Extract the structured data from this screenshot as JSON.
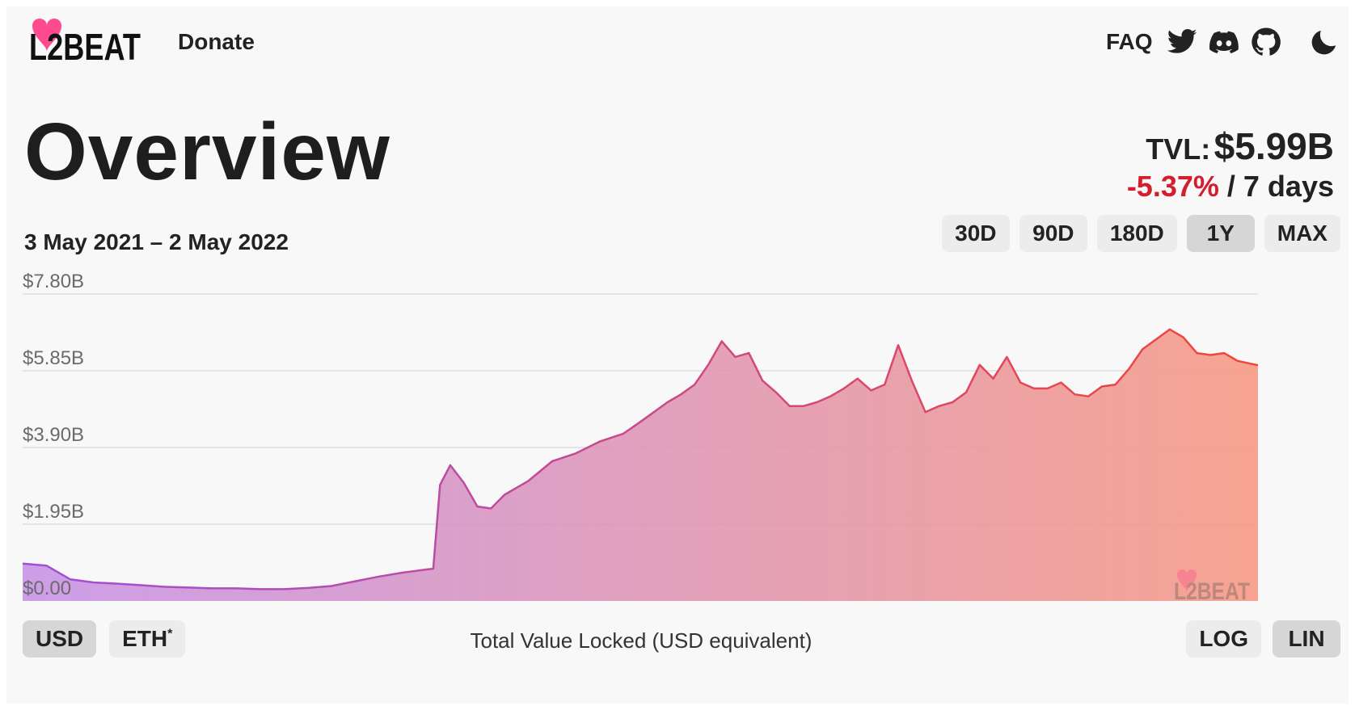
{
  "header": {
    "logo_text": "L2BEAT",
    "donate_label": "Donate",
    "faq_label": "FAQ",
    "icons": [
      "twitter-icon",
      "discord-icon",
      "github-icon",
      "moon-icon"
    ]
  },
  "main": {
    "title": "Overview",
    "tvl_label": "TVL:",
    "tvl_value": "$5.99B",
    "change_value": "-5.37%",
    "change_period": "/ 7 days",
    "date_range": "3 May 2021 – 2 May 2022",
    "range_buttons": [
      "30D",
      "90D",
      "180D",
      "1Y",
      "MAX"
    ],
    "active_range": "1Y"
  },
  "footer": {
    "currency_buttons": [
      "USD",
      "ETH"
    ],
    "eth_marker": "*",
    "active_currency": "USD",
    "caption": "Total Value Locked (USD equivalent)",
    "scale_buttons": [
      "LOG",
      "LIN"
    ],
    "active_scale": "LIN"
  },
  "colors": {
    "accent_red": "#d31f2c",
    "gradient_start": "#a467e0",
    "gradient_end": "#f2564a",
    "logo_pink": "#ff4a8d"
  },
  "chart_data": {
    "type": "area",
    "title": "",
    "xlabel": "",
    "ylabel": "",
    "x_range": [
      "2021-05-03",
      "2022-05-02"
    ],
    "ylim": [
      0,
      7.8
    ],
    "y_unit": "billion USD",
    "y_ticks": [
      {
        "value": 7.8,
        "label": "$7.80B"
      },
      {
        "value": 5.85,
        "label": "$5.85B"
      },
      {
        "value": 3.9,
        "label": "$3.90B"
      },
      {
        "value": 1.95,
        "label": "$1.95B"
      },
      {
        "value": 0,
        "label": "$0.00"
      }
    ],
    "grid": true,
    "series": [
      {
        "x": [
          "2021-05-03",
          "2021-05-10",
          "2021-05-17",
          "2021-05-24",
          "2021-05-31",
          "2021-06-07",
          "2021-06-14",
          "2021-06-21",
          "2021-06-28",
          "2021-07-05",
          "2021-07-12",
          "2021-07-19",
          "2021-07-26",
          "2021-08-02",
          "2021-08-09",
          "2021-08-16",
          "2021-08-23",
          "2021-08-30",
          "2021-09-01",
          "2021-09-03",
          "2021-09-06",
          "2021-09-10",
          "2021-09-14",
          "2021-09-18",
          "2021-09-22",
          "2021-09-29",
          "2021-10-06",
          "2021-10-13",
          "2021-10-20",
          "2021-10-27",
          "2021-11-01",
          "2021-11-05",
          "2021-11-09",
          "2021-11-13",
          "2021-11-17",
          "2021-11-21",
          "2021-11-25",
          "2021-11-29",
          "2021-12-03",
          "2021-12-07",
          "2021-12-11",
          "2021-12-15",
          "2021-12-19",
          "2021-12-23",
          "2021-12-27",
          "2021-12-31",
          "2022-01-04",
          "2022-01-08",
          "2022-01-12",
          "2022-01-16",
          "2022-01-20",
          "2022-01-24",
          "2022-01-28",
          "2022-02-01",
          "2022-02-05",
          "2022-02-09",
          "2022-02-13",
          "2022-02-17",
          "2022-02-21",
          "2022-02-25",
          "2022-03-01",
          "2022-03-05",
          "2022-03-09",
          "2022-03-13",
          "2022-03-17",
          "2022-03-21",
          "2022-03-25",
          "2022-03-29",
          "2022-04-02",
          "2022-04-06",
          "2022-04-10",
          "2022-04-14",
          "2022-04-18",
          "2022-04-22",
          "2022-04-26",
          "2022-05-02"
        ],
        "values": [
          0.95,
          0.9,
          0.55,
          0.47,
          0.44,
          0.4,
          0.36,
          0.34,
          0.32,
          0.32,
          0.3,
          0.3,
          0.33,
          0.38,
          0.5,
          0.62,
          0.72,
          0.8,
          0.82,
          2.95,
          3.45,
          3.0,
          2.4,
          2.35,
          2.7,
          3.05,
          3.55,
          3.75,
          4.05,
          4.25,
          4.55,
          4.8,
          5.05,
          5.25,
          5.5,
          6.0,
          6.6,
          6.2,
          6.3,
          5.6,
          5.3,
          4.95,
          4.95,
          5.05,
          5.2,
          5.4,
          5.65,
          5.35,
          5.5,
          6.5,
          5.6,
          4.8,
          4.95,
          5.05,
          5.3,
          6.0,
          5.65,
          6.2,
          5.55,
          5.4,
          5.4,
          5.55,
          5.25,
          5.2,
          5.45,
          5.5,
          5.9,
          6.4,
          6.65,
          6.9,
          6.7,
          6.3,
          6.25,
          6.3,
          6.1,
          5.99
        ]
      }
    ]
  }
}
